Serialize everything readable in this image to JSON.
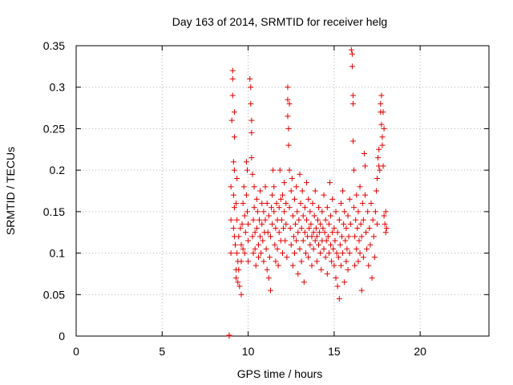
{
  "chart_data": {
    "type": "scatter",
    "title": "Day 163 of 2014, SRMTID for receiver helg",
    "xlabel": "GPS time / hours",
    "ylabel": "SRMTID / TECUs",
    "xlim": [
      0,
      24
    ],
    "ylim": [
      0,
      0.35
    ],
    "xticks": [
      0,
      5,
      10,
      15,
      20
    ],
    "yticks": [
      0,
      0.05,
      0.1,
      0.15,
      0.2,
      0.25,
      0.3,
      0.35
    ],
    "xtick_labels": [
      "0",
      "5",
      "10",
      "15",
      "20"
    ],
    "ytick_labels": [
      "0",
      "0.05",
      "0.1",
      "0.15",
      "0.2",
      "0.25",
      "0.3",
      "0.35"
    ],
    "grid": true,
    "marker": "+",
    "marker_color": "#e00000",
    "series": [
      {
        "name": "SRMTID",
        "points": [
          [
            8.9,
            0.0
          ],
          [
            8.9,
            0.001
          ],
          [
            9.0,
            0.18
          ],
          [
            9.0,
            0.14
          ],
          [
            9.0,
            0.1
          ],
          [
            9.05,
            0.26
          ],
          [
            9.1,
            0.32
          ],
          [
            9.1,
            0.31
          ],
          [
            9.1,
            0.29
          ],
          [
            9.15,
            0.21
          ],
          [
            9.15,
            0.17
          ],
          [
            9.15,
            0.13
          ],
          [
            9.2,
            0.27
          ],
          [
            9.2,
            0.24
          ],
          [
            9.2,
            0.2
          ],
          [
            9.2,
            0.155
          ],
          [
            9.2,
            0.12
          ],
          [
            9.25,
            0.11
          ],
          [
            9.3,
            0.16
          ],
          [
            9.3,
            0.08
          ],
          [
            9.3,
            0.07
          ],
          [
            9.35,
            0.19
          ],
          [
            9.35,
            0.14
          ],
          [
            9.35,
            0.1
          ],
          [
            9.4,
            0.09
          ],
          [
            9.4,
            0.065
          ],
          [
            9.45,
            0.12
          ],
          [
            9.45,
            0.08
          ],
          [
            9.5,
            0.06
          ],
          [
            9.55,
            0.13
          ],
          [
            9.6,
            0.05
          ],
          [
            9.6,
            0.09
          ],
          [
            9.6,
            0.11
          ],
          [
            9.65,
            0.135
          ],
          [
            9.7,
            0.105
          ],
          [
            9.7,
            0.16
          ],
          [
            9.75,
            0.18
          ],
          [
            9.8,
            0.145
          ],
          [
            9.8,
            0.1
          ],
          [
            9.85,
            0.125
          ],
          [
            9.9,
            0.21
          ],
          [
            9.9,
            0.17
          ],
          [
            9.95,
            0.2
          ],
          [
            9.95,
            0.15
          ],
          [
            10.0,
            0.115
          ],
          [
            10.0,
            0.135
          ],
          [
            10.0,
            0.09
          ],
          [
            10.1,
            0.31
          ],
          [
            10.15,
            0.3
          ],
          [
            10.15,
            0.28
          ],
          [
            10.2,
            0.26
          ],
          [
            10.2,
            0.245
          ],
          [
            10.2,
            0.215
          ],
          [
            10.25,
            0.195
          ],
          [
            10.25,
            0.12
          ],
          [
            10.3,
            0.14
          ],
          [
            10.3,
            0.1
          ],
          [
            10.35,
            0.18
          ],
          [
            10.35,
            0.155
          ],
          [
            10.4,
            0.125
          ],
          [
            10.4,
            0.105
          ],
          [
            10.45,
            0.085
          ],
          [
            10.5,
            0.165
          ],
          [
            10.5,
            0.13
          ],
          [
            10.55,
            0.15
          ],
          [
            10.6,
            0.11
          ],
          [
            10.6,
            0.095
          ],
          [
            10.65,
            0.14
          ],
          [
            10.7,
            0.175
          ],
          [
            10.7,
            0.12
          ],
          [
            10.75,
            0.1
          ],
          [
            10.8,
            0.16
          ],
          [
            10.8,
            0.135
          ],
          [
            10.85,
            0.115
          ],
          [
            10.9,
            0.15
          ],
          [
            10.9,
            0.09
          ],
          [
            10.95,
            0.125
          ],
          [
            11.0,
            0.18
          ],
          [
            11.0,
            0.14
          ],
          [
            11.05,
            0.105
          ],
          [
            11.1,
            0.16
          ],
          [
            11.1,
            0.08
          ],
          [
            11.15,
            0.125
          ],
          [
            11.2,
            0.07
          ],
          [
            11.2,
            0.145
          ],
          [
            11.25,
            0.095
          ],
          [
            11.3,
            0.055
          ],
          [
            11.3,
            0.12
          ],
          [
            11.35,
            0.155
          ],
          [
            11.4,
            0.17
          ],
          [
            11.4,
            0.135
          ],
          [
            11.45,
            0.2
          ],
          [
            11.5,
            0.18
          ],
          [
            11.5,
            0.15
          ],
          [
            11.55,
            0.11
          ],
          [
            11.6,
            0.13
          ],
          [
            11.6,
            0.09
          ],
          [
            11.65,
            0.16
          ],
          [
            11.7,
            0.14
          ],
          [
            11.7,
            0.105
          ],
          [
            11.75,
            0.085
          ],
          [
            11.8,
            0.125
          ],
          [
            11.8,
            0.155
          ],
          [
            11.85,
            0.2
          ],
          [
            11.9,
            0.165
          ],
          [
            11.9,
            0.115
          ],
          [
            11.95,
            0.14
          ],
          [
            12.0,
            0.17
          ],
          [
            12.0,
            0.1
          ],
          [
            12.05,
            0.13
          ],
          [
            12.1,
            0.185
          ],
          [
            12.1,
            0.15
          ],
          [
            12.15,
            0.115
          ],
          [
            12.2,
            0.16
          ],
          [
            12.2,
            0.135
          ],
          [
            12.25,
            0.095
          ],
          [
            12.3,
            0.3
          ],
          [
            12.3,
            0.285
          ],
          [
            12.3,
            0.265
          ],
          [
            12.35,
            0.25
          ],
          [
            12.35,
            0.23
          ],
          [
            12.4,
            0.28
          ],
          [
            12.4,
            0.2
          ],
          [
            12.4,
            0.155
          ],
          [
            12.45,
            0.13
          ],
          [
            12.5,
            0.175
          ],
          [
            12.5,
            0.11
          ],
          [
            12.55,
            0.19
          ],
          [
            12.6,
            0.145
          ],
          [
            12.6,
            0.085
          ],
          [
            12.65,
            0.12
          ],
          [
            12.7,
            0.165
          ],
          [
            12.7,
            0.1
          ],
          [
            12.75,
            0.135
          ],
          [
            12.8,
            0.18
          ],
          [
            12.8,
            0.115
          ],
          [
            12.85,
            0.15
          ],
          [
            12.9,
            0.125
          ],
          [
            12.9,
            0.075
          ],
          [
            12.95,
            0.14
          ],
          [
            13.0,
            0.195
          ],
          [
            13.0,
            0.105
          ],
          [
            13.05,
            0.16
          ],
          [
            13.1,
            0.13
          ],
          [
            13.1,
            0.09
          ],
          [
            13.15,
            0.175
          ],
          [
            13.2,
            0.145
          ],
          [
            13.2,
            0.115
          ],
          [
            13.25,
            0.065
          ],
          [
            13.3,
            0.155
          ],
          [
            13.3,
            0.125
          ],
          [
            13.35,
            0.1
          ],
          [
            13.4,
            0.185
          ],
          [
            13.4,
            0.14
          ],
          [
            13.45,
            0.12
          ],
          [
            13.5,
            0.165
          ],
          [
            13.5,
            0.095
          ],
          [
            13.55,
            0.13
          ],
          [
            13.6,
            0.15
          ],
          [
            13.6,
            0.11
          ],
          [
            13.65,
            0.135
          ],
          [
            13.7,
            0.12
          ],
          [
            13.7,
            0.085
          ],
          [
            13.75,
            0.16
          ],
          [
            13.8,
            0.125
          ],
          [
            13.8,
            0.105
          ],
          [
            13.85,
            0.145
          ],
          [
            13.9,
            0.115
          ],
          [
            13.9,
            0.175
          ],
          [
            13.95,
            0.13
          ],
          [
            14.0,
            0.12
          ],
          [
            14.0,
            0.09
          ],
          [
            14.05,
            0.14
          ],
          [
            14.1,
            0.11
          ],
          [
            14.1,
            0.155
          ],
          [
            14.15,
            0.125
          ],
          [
            14.2,
            0.1
          ],
          [
            14.2,
            0.135
          ],
          [
            14.25,
            0.08
          ],
          [
            14.3,
            0.15
          ],
          [
            14.3,
            0.115
          ],
          [
            14.35,
            0.13
          ],
          [
            14.4,
            0.105
          ],
          [
            14.4,
            0.17
          ],
          [
            14.45,
            0.125
          ],
          [
            14.5,
            0.095
          ],
          [
            14.5,
            0.14
          ],
          [
            14.55,
            0.115
          ],
          [
            14.6,
            0.155
          ],
          [
            14.6,
            0.075
          ],
          [
            14.65,
            0.12
          ],
          [
            14.7,
            0.135
          ],
          [
            14.7,
            0.1
          ],
          [
            14.75,
            0.185
          ],
          [
            14.8,
            0.11
          ],
          [
            14.8,
            0.145
          ],
          [
            14.85,
            0.09
          ],
          [
            14.9,
            0.125
          ],
          [
            14.9,
            0.165
          ],
          [
            14.95,
            0.105
          ],
          [
            15.0,
            0.13
          ],
          [
            15.0,
            0.085
          ],
          [
            15.05,
            0.115
          ],
          [
            15.1,
            0.15
          ],
          [
            15.1,
            0.07
          ],
          [
            15.15,
            0.1
          ],
          [
            15.2,
            0.125
          ],
          [
            15.2,
            0.06
          ],
          [
            15.25,
            0.095
          ],
          [
            15.3,
            0.045
          ],
          [
            15.3,
            0.14
          ],
          [
            15.35,
            0.11
          ],
          [
            15.4,
            0.16
          ],
          [
            15.4,
            0.085
          ],
          [
            15.45,
            0.12
          ],
          [
            15.5,
            0.175
          ],
          [
            15.5,
            0.1
          ],
          [
            15.55,
            0.135
          ],
          [
            15.6,
            0.065
          ],
          [
            15.6,
            0.15
          ],
          [
            15.65,
            0.115
          ],
          [
            15.7,
            0.09
          ],
          [
            15.7,
            0.13
          ],
          [
            15.75,
            0.105
          ],
          [
            15.8,
            0.08
          ],
          [
            15.8,
            0.145
          ],
          [
            15.85,
            0.12
          ],
          [
            15.9,
            0.165
          ],
          [
            15.9,
            0.1
          ],
          [
            15.95,
            0.135
          ],
          [
            16.0,
            0.345
          ],
          [
            16.05,
            0.34
          ],
          [
            16.05,
            0.325
          ],
          [
            16.1,
            0.29
          ],
          [
            16.1,
            0.28
          ],
          [
            16.1,
            0.235
          ],
          [
            16.15,
            0.2
          ],
          [
            16.15,
            0.155
          ],
          [
            16.2,
            0.12
          ],
          [
            16.2,
            0.085
          ],
          [
            16.25,
            0.14
          ],
          [
            16.3,
            0.105
          ],
          [
            16.3,
            0.17
          ],
          [
            16.35,
            0.13
          ],
          [
            16.4,
            0.09
          ],
          [
            16.4,
            0.15
          ],
          [
            16.45,
            0.115
          ],
          [
            16.5,
            0.18
          ],
          [
            16.5,
            0.1
          ],
          [
            16.55,
            0.135
          ],
          [
            16.6,
            0.055
          ],
          [
            16.6,
            0.12
          ],
          [
            16.65,
            0.16
          ],
          [
            16.7,
            0.095
          ],
          [
            16.7,
            0.14
          ],
          [
            16.75,
            0.22
          ],
          [
            16.8,
            0.205
          ],
          [
            16.8,
            0.17
          ],
          [
            16.85,
            0.125
          ],
          [
            16.9,
            0.105
          ],
          [
            16.95,
            0.15
          ],
          [
            17.0,
            0.085
          ],
          [
            17.05,
            0.13
          ],
          [
            17.1,
            0.11
          ],
          [
            17.15,
            0.16
          ],
          [
            17.2,
            0.07
          ],
          [
            17.25,
            0.14
          ],
          [
            17.3,
            0.12
          ],
          [
            17.35,
            0.095
          ],
          [
            17.4,
            0.15
          ],
          [
            17.45,
            0.175
          ],
          [
            17.5,
            0.19
          ],
          [
            17.5,
            0.135
          ],
          [
            17.55,
            0.215
          ],
          [
            17.6,
            0.225
          ],
          [
            17.6,
            0.205
          ],
          [
            17.65,
            0.2
          ],
          [
            17.7,
            0.28
          ],
          [
            17.7,
            0.27
          ],
          [
            17.75,
            0.29
          ],
          [
            17.75,
            0.255
          ],
          [
            17.8,
            0.24
          ],
          [
            17.8,
            0.23
          ],
          [
            17.85,
            0.27
          ],
          [
            17.85,
            0.205
          ],
          [
            17.9,
            0.25
          ],
          [
            17.9,
            0.145
          ],
          [
            17.95,
            0.135
          ],
          [
            18.0,
            0.125
          ],
          [
            18.0,
            0.15
          ],
          [
            18.05,
            0.13
          ]
        ]
      }
    ]
  }
}
